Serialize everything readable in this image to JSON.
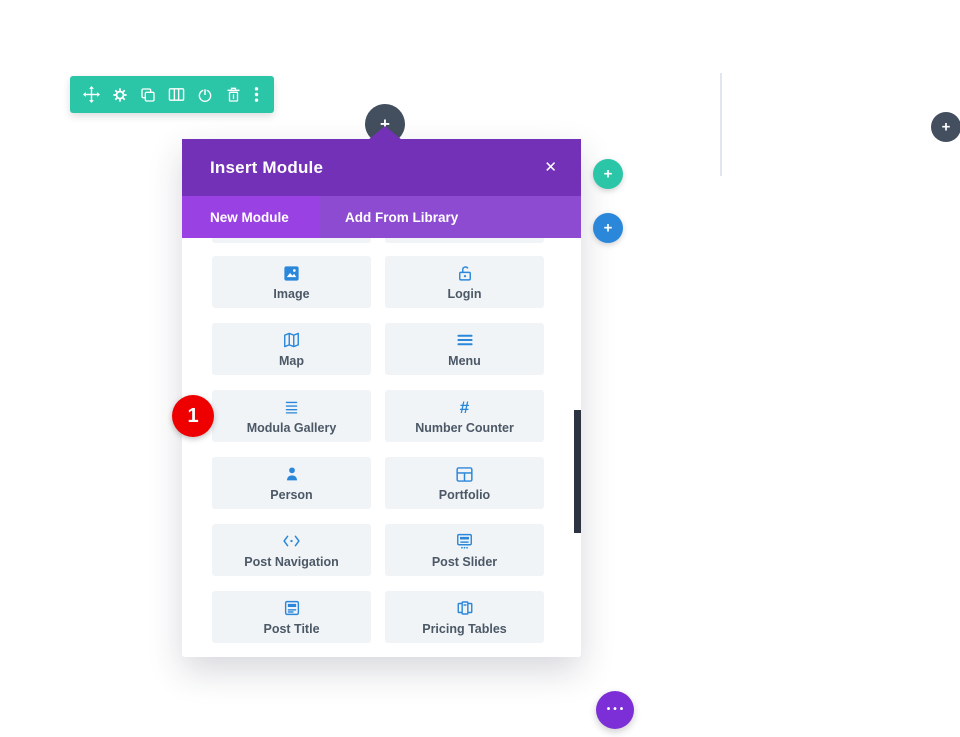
{
  "colors": {
    "toolbar_green": "#2bc5a7",
    "modal_header_purple": "#7331b8",
    "tabbar_purple": "#8d4bd2",
    "active_tab_purple": "#9a41e3",
    "module_blue": "#2b87da",
    "card_bg": "#f0f4f7",
    "card_label": "#4c5866",
    "dark_circle": "#434f5e",
    "page_more_purple": "#7c2fd6",
    "badge_red": "#ee0000",
    "scrollbar_dark": "#2b3440"
  },
  "section_toolbar": {
    "icons": [
      {
        "name": "move-icon"
      },
      {
        "name": "settings-icon"
      },
      {
        "name": "duplicate-icon"
      },
      {
        "name": "columns-icon"
      },
      {
        "name": "disable-icon"
      },
      {
        "name": "trash-icon"
      },
      {
        "name": "more-vertical-icon"
      }
    ]
  },
  "floating_buttons": {
    "row_add_plus": "+",
    "column_add_plus": "+",
    "module_add_plus": "+",
    "page_add_plus": "+",
    "page_more_dots": "•••"
  },
  "modal": {
    "title": "Insert Module",
    "close_symbol": "✕",
    "tabs": [
      {
        "label": "New Module",
        "active": true
      },
      {
        "label": "Add From Library",
        "active": false
      }
    ],
    "modules": [
      {
        "label": "Image",
        "icon": "image"
      },
      {
        "label": "Login",
        "icon": "login"
      },
      {
        "label": "Map",
        "icon": "map"
      },
      {
        "label": "Menu",
        "icon": "menu"
      },
      {
        "label": "Modula Gallery",
        "icon": "modula-gallery"
      },
      {
        "label": "Number Counter",
        "icon": "number-counter"
      },
      {
        "label": "Person",
        "icon": "person"
      },
      {
        "label": "Portfolio",
        "icon": "portfolio"
      },
      {
        "label": "Post Navigation",
        "icon": "post-navigation"
      },
      {
        "label": "Post Slider",
        "icon": "post-slider"
      },
      {
        "label": "Post Title",
        "icon": "post-title"
      },
      {
        "label": "Pricing Tables",
        "icon": "pricing-tables"
      }
    ]
  },
  "annotation": {
    "step_number": "1"
  }
}
